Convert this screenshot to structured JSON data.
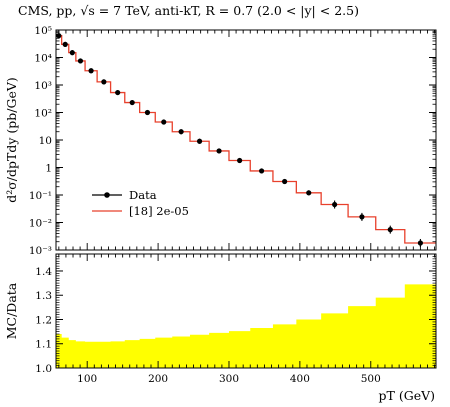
{
  "chart_data": [
    {
      "type": "line",
      "title": "CMS, pp, √s = 7 TeV, anti-kT, R = 0.7 (2.0 < |y| < 2.5)",
      "xlabel": "",
      "ylabel": "d²σ/dpTdy (pb/GeV)",
      "yscale": "log",
      "xlim": [
        56,
        592
      ],
      "ylim": [
        0.001,
        100000
      ],
      "x_ticks": [
        "100",
        "200",
        "300",
        "400",
        "500"
      ],
      "y_ticks": [
        "10⁵",
        "10⁴",
        "10³",
        "10²",
        "10",
        "1",
        "10⁻¹",
        "10⁻²",
        "10⁻³"
      ],
      "legend_placement": "bottom-left",
      "bin_edges": [
        56,
        64,
        74,
        84,
        97,
        114,
        133,
        153,
        174,
        196,
        220,
        245,
        272,
        300,
        330,
        362,
        395,
        430,
        468,
        507,
        548,
        592
      ],
      "series": [
        {
          "name": "Data",
          "style": "points-with-errors",
          "x": [
            60,
            69,
            79,
            90.5,
            105.5,
            123.5,
            143,
            163.5,
            185,
            208,
            232.5,
            258.5,
            286,
            315,
            346,
            378.5,
            412.5,
            449,
            487.5,
            527.5,
            570
          ],
          "y": [
            62000,
            30000,
            15000,
            7500,
            3300,
            1300,
            530,
            230,
            100,
            45,
            20,
            9,
            4,
            1.8,
            0.75,
            0.31,
            0.12,
            0.045,
            0.016,
            0.0055,
            0.0018
          ]
        },
        {
          "name": "[18] 2e-05",
          "style": "histogram",
          "values": [
            62000,
            30000,
            15000,
            7500,
            3300,
            1300,
            530,
            230,
            100,
            45,
            20,
            9,
            4,
            1.8,
            0.75,
            0.31,
            0.12,
            0.045,
            0.016,
            0.0055,
            0.0018
          ]
        }
      ]
    },
    {
      "type": "area",
      "xlabel": "pT (GeV)",
      "ylabel": "MC/Data",
      "xlim": [
        56,
        592
      ],
      "ylim": [
        1.0,
        1.47
      ],
      "x_ticks": [
        "100",
        "200",
        "300",
        "400",
        "500"
      ],
      "y_ticks": [
        "1.0",
        "1.1",
        "1.2",
        "1.3",
        "1.4"
      ],
      "bin_edges": [
        56,
        64,
        74,
        84,
        97,
        114,
        133,
        153,
        174,
        196,
        220,
        245,
        272,
        300,
        330,
        362,
        395,
        430,
        468,
        507,
        548,
        592
      ],
      "series": [
        {
          "style": "band",
          "lower": 1.0,
          "upper": [
            1.14,
            1.125,
            1.115,
            1.11,
            1.108,
            1.108,
            1.11,
            1.115,
            1.12,
            1.125,
            1.13,
            1.137,
            1.145,
            1.152,
            1.165,
            1.18,
            1.2,
            1.225,
            1.255,
            1.29,
            1.345
          ]
        }
      ]
    }
  ]
}
